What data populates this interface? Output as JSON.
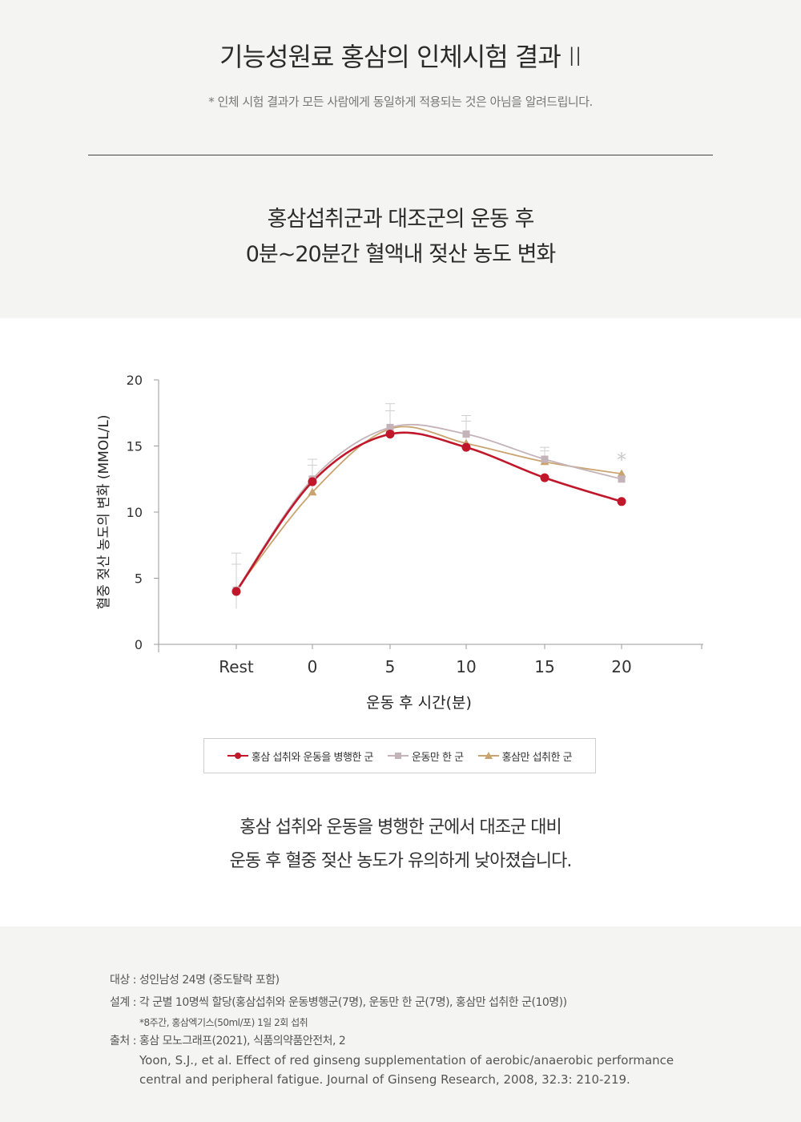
{
  "header": {
    "title": "기능성원료 홍삼의 인체시험 결과 II",
    "disclaimer": "* 인체 시험 결과가 모든 사람에게 동일하게 적용되는 것은 아님을 알려드립니다."
  },
  "chart_heading": {
    "line1": "홍삼섭취군과 대조군의 운동 후",
    "line2": "0분~20분간 혈액내 젖산 농도 변화"
  },
  "chart_data": {
    "type": "line",
    "title": "",
    "xlabel": "운동 후 시간(분)",
    "ylabel": "혈중 젖산 농도의 변화 (MMOL/L)",
    "categories": [
      "Rest",
      "0",
      "5",
      "10",
      "15",
      "20"
    ],
    "yticks": [
      "0",
      "5",
      "10",
      "15",
      "20"
    ],
    "ylim": [
      0,
      20
    ],
    "grid": false,
    "legend_position": "bottom",
    "series": [
      {
        "name": "홍삼 섭취와 운동을 병행한 군",
        "marker": "circle",
        "color": "#c0172a",
        "values": [
          4.0,
          12.3,
          15.9,
          14.9,
          12.6,
          10.8
        ]
      },
      {
        "name": "운동만 한 군",
        "marker": "square",
        "color": "#c4b3b8",
        "values": [
          4.1,
          12.5,
          16.4,
          15.9,
          14.0,
          12.5
        ]
      },
      {
        "name": "홍삼만 섭취한 군",
        "marker": "triangle",
        "color": "#c9a470",
        "values": [
          4.1,
          11.5,
          16.3,
          15.2,
          13.8,
          12.9
        ]
      }
    ],
    "error_bars": [
      2.8,
      1.5,
      1.8,
      1.4,
      0.9,
      0
    ],
    "annotations": [
      {
        "category": "20",
        "text": "*"
      }
    ]
  },
  "conclusion": {
    "line1": "홍삼 섭취와 운동을 병행한 군에서 대조군 대비",
    "line2": "운동 후 혈중 젖산 농도가 유의하게 낮아졌습니다."
  },
  "notes": {
    "subject": "대상 : 성인남성 24명 (중도탈락 포함)",
    "design": "설계 : 각 군별 10명씩 할당(홍삼섭취와 운동병행군(7명), 운동만 한 군(7명), 홍삼만 섭취한 군(10명))",
    "design_detail": "*8주간, 홍삼엑기스(50ml/포) 1일 2회 섭취",
    "source": "출처 : 홍삼 모노그래프(2021), 식품의약품안전처, 2",
    "reference_line1": "Yoon, S.J., et al. Effect of red ginseng supplementation of aerobic/anaerobic performance",
    "reference_line2": "central and peripheral fatigue. Journal of Ginseng Research, 2008, 32.3: 210-219."
  }
}
